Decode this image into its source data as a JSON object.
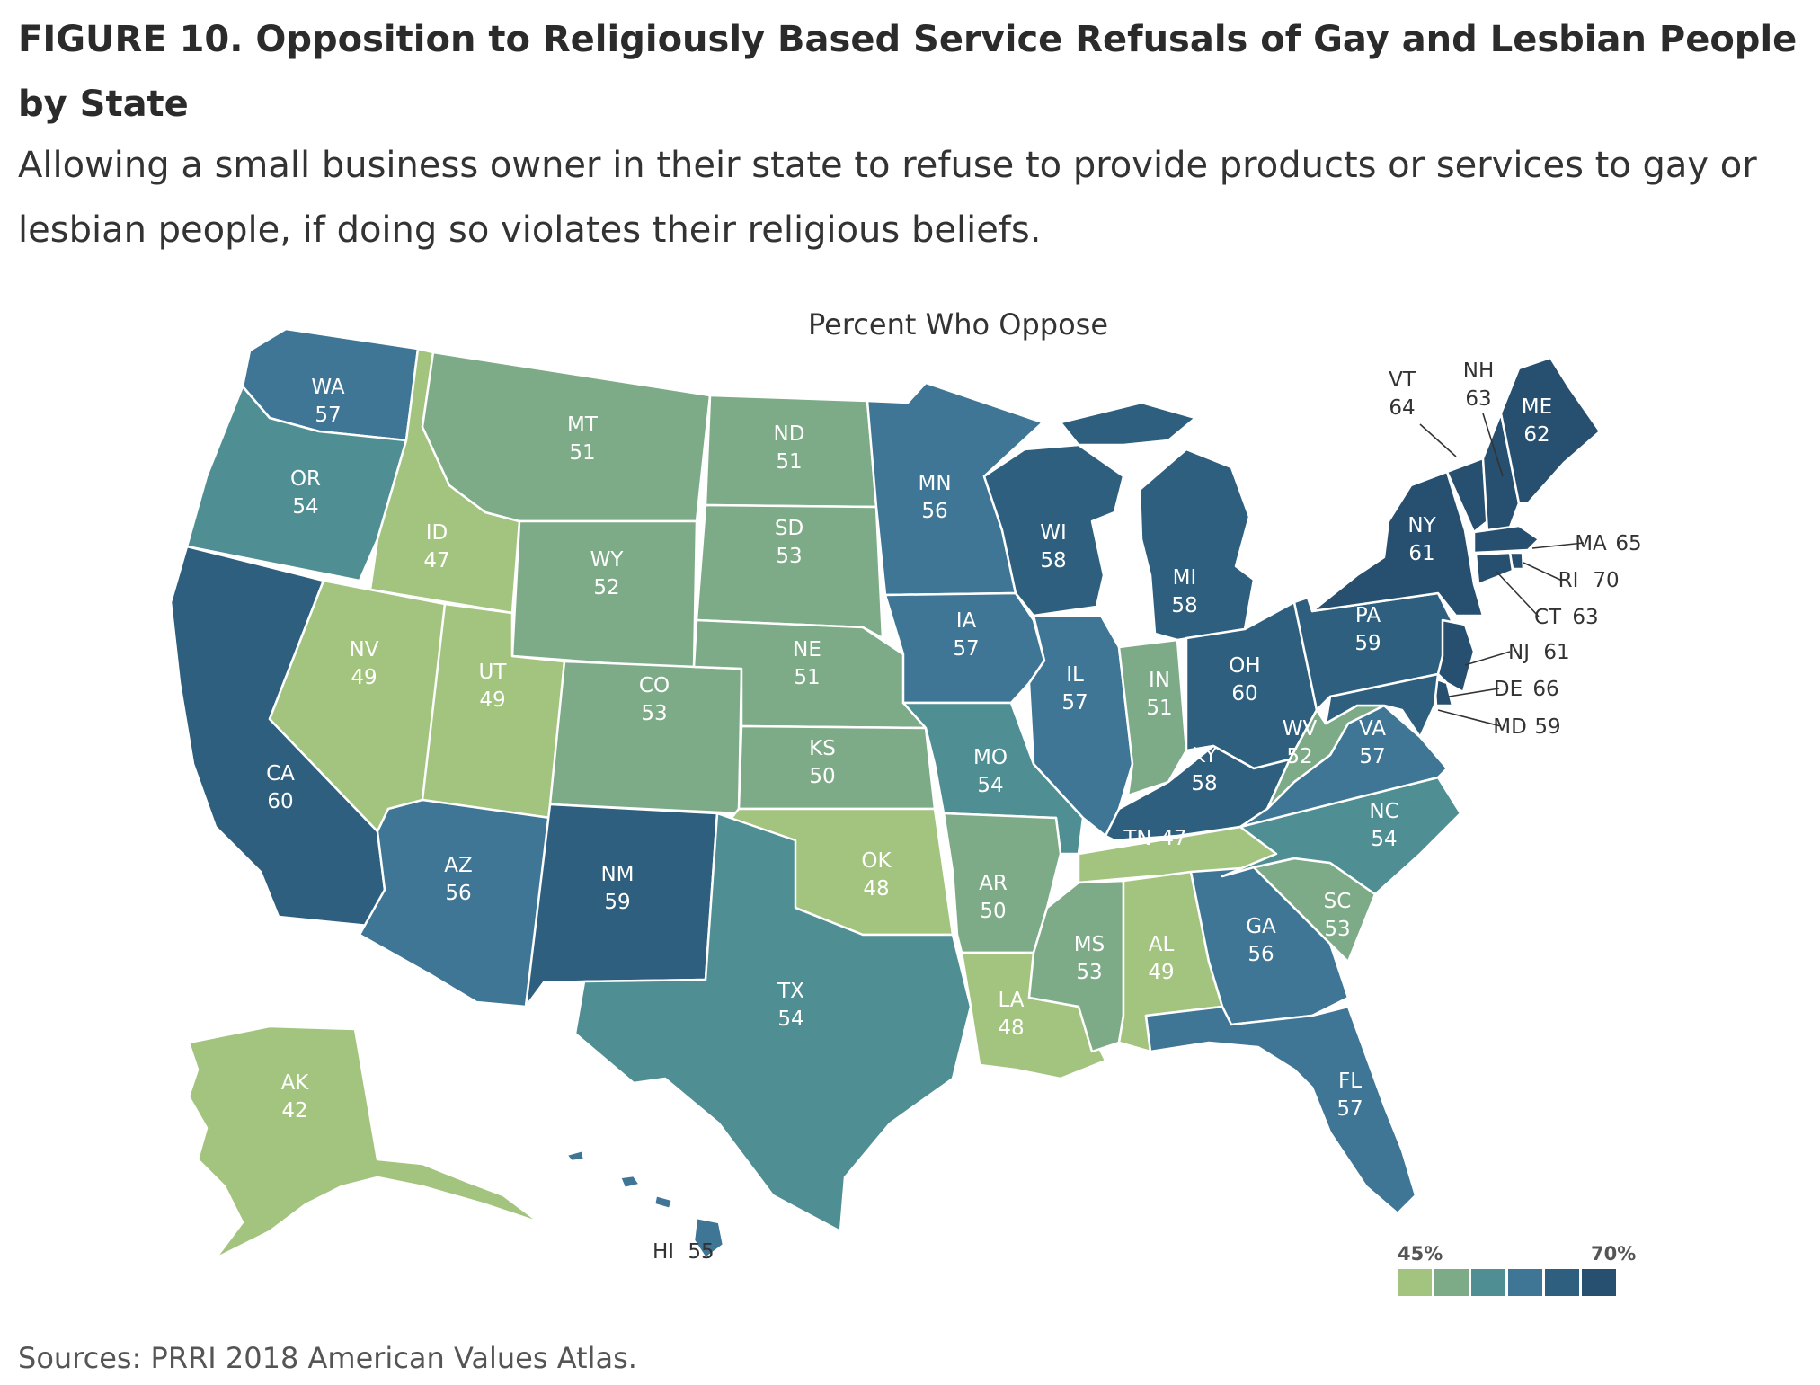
{
  "title": "FIGURE 10.  Opposition to Religiously Based Service Refusals of Gay and Lesbian People by State",
  "subtitle": "Allowing a small business owner in their state to refuse to provide products or services to gay or lesbian people, if doing so violates their religious beliefs.",
  "map_heading": "Percent Who Oppose",
  "source": "Sources: PRRI 2018 American Values Atlas.",
  "legend": {
    "min_label": "45%",
    "max_label": "70%",
    "colors": [
      "#a3c47e",
      "#7eab87",
      "#4f8e93",
      "#3f7696",
      "#2e5f7f",
      "#274f6f"
    ]
  },
  "chart_data": {
    "type": "choropleth",
    "title": "Percent Who Oppose",
    "scale_min": 45,
    "scale_max": 70,
    "states": [
      {
        "abbr": "WA",
        "value": 57
      },
      {
        "abbr": "OR",
        "value": 54
      },
      {
        "abbr": "CA",
        "value": 60
      },
      {
        "abbr": "ID",
        "value": 47
      },
      {
        "abbr": "NV",
        "value": 49
      },
      {
        "abbr": "MT",
        "value": 51
      },
      {
        "abbr": "WY",
        "value": 52
      },
      {
        "abbr": "UT",
        "value": 49
      },
      {
        "abbr": "AZ",
        "value": 56
      },
      {
        "abbr": "CO",
        "value": 53
      },
      {
        "abbr": "NM",
        "value": 59
      },
      {
        "abbr": "ND",
        "value": 51
      },
      {
        "abbr": "SD",
        "value": 53
      },
      {
        "abbr": "NE",
        "value": 51
      },
      {
        "abbr": "KS",
        "value": 50
      },
      {
        "abbr": "OK",
        "value": 48
      },
      {
        "abbr": "TX",
        "value": 54
      },
      {
        "abbr": "MN",
        "value": 56
      },
      {
        "abbr": "IA",
        "value": 57
      },
      {
        "abbr": "MO",
        "value": 54
      },
      {
        "abbr": "AR",
        "value": 50
      },
      {
        "abbr": "LA",
        "value": 48
      },
      {
        "abbr": "WI",
        "value": 58
      },
      {
        "abbr": "IL",
        "value": 57
      },
      {
        "abbr": "MI",
        "value": 58
      },
      {
        "abbr": "IN",
        "value": 51
      },
      {
        "abbr": "OH",
        "value": 60
      },
      {
        "abbr": "KY",
        "value": 58
      },
      {
        "abbr": "TN",
        "value": 47
      },
      {
        "abbr": "MS",
        "value": 53
      },
      {
        "abbr": "AL",
        "value": 49
      },
      {
        "abbr": "GA",
        "value": 56
      },
      {
        "abbr": "FL",
        "value": 57
      },
      {
        "abbr": "SC",
        "value": 53
      },
      {
        "abbr": "NC",
        "value": 54
      },
      {
        "abbr": "VA",
        "value": 57
      },
      {
        "abbr": "WV",
        "value": 52
      },
      {
        "abbr": "PA",
        "value": 59
      },
      {
        "abbr": "NY",
        "value": 61
      },
      {
        "abbr": "VT",
        "value": 64
      },
      {
        "abbr": "NH",
        "value": 63
      },
      {
        "abbr": "ME",
        "value": 62
      },
      {
        "abbr": "MA",
        "value": 65
      },
      {
        "abbr": "RI",
        "value": 70
      },
      {
        "abbr": "CT",
        "value": 63
      },
      {
        "abbr": "NJ",
        "value": 61
      },
      {
        "abbr": "DE",
        "value": 66
      },
      {
        "abbr": "MD",
        "value": 59
      },
      {
        "abbr": "AK",
        "value": 42
      },
      {
        "abbr": "HI",
        "value": 55
      }
    ]
  }
}
